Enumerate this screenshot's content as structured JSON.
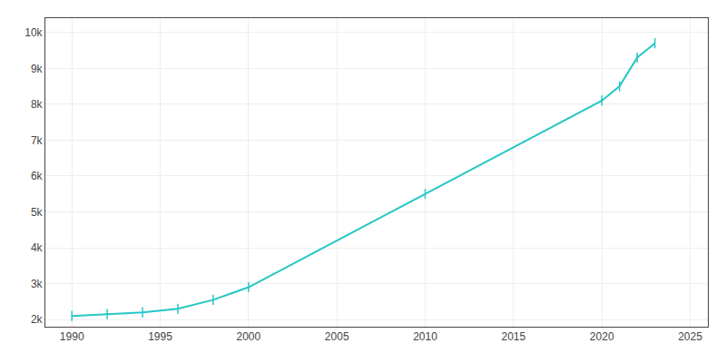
{
  "chart_data": {
    "type": "line",
    "x": [
      1990,
      1992,
      1994,
      1996,
      1998,
      2000,
      2010,
      2020,
      2021,
      2022,
      2023
    ],
    "values": [
      2100,
      2150,
      2200,
      2300,
      2550,
      2900,
      5500,
      8100,
      8500,
      9300,
      9700
    ],
    "color": "#26c6c6",
    "marker": "vline",
    "xlim": [
      1988.5,
      2026
    ],
    "ylim": [
      1800,
      10400
    ],
    "xticks": [
      1990,
      1995,
      2000,
      2005,
      2010,
      2015,
      2020,
      2025
    ],
    "yticks": [
      {
        "value": 2000,
        "label": "2k"
      },
      {
        "value": 3000,
        "label": "3k"
      },
      {
        "value": 4000,
        "label": "4k"
      },
      {
        "value": 5000,
        "label": "5k"
      },
      {
        "value": 6000,
        "label": "6k"
      },
      {
        "value": 7000,
        "label": "7k"
      },
      {
        "value": 8000,
        "label": "8k"
      },
      {
        "value": 9000,
        "label": "9k"
      },
      {
        "value": 10000,
        "label": "10k"
      }
    ],
    "grid": true
  }
}
